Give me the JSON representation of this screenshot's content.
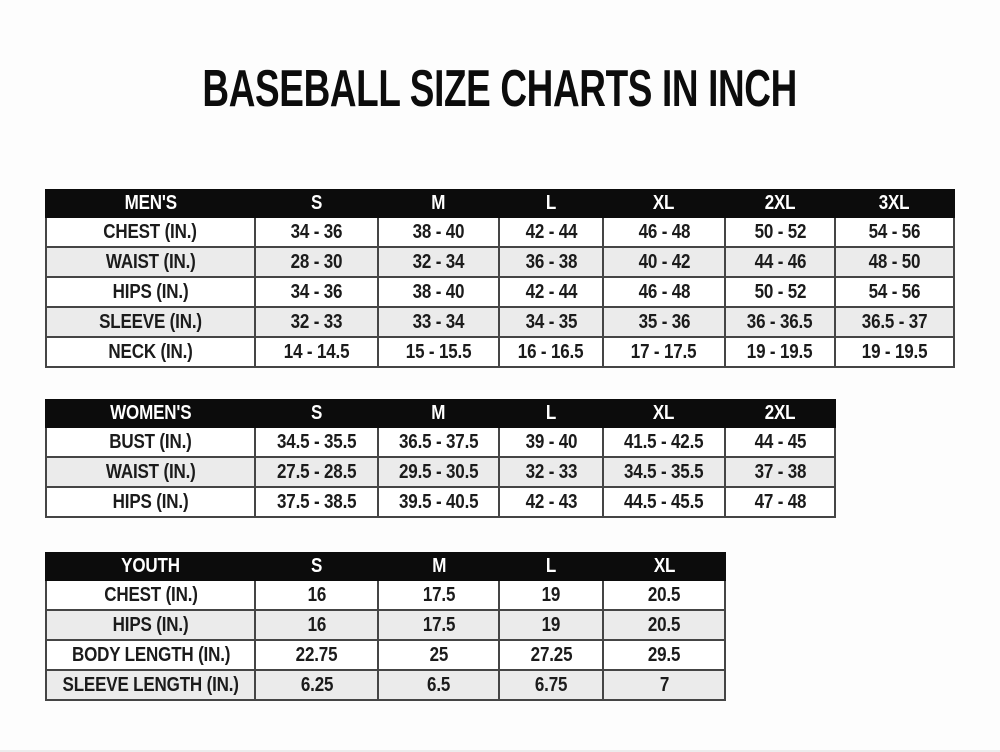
{
  "page": {
    "title": "BASEBALL SIZE CHARTS IN INCH"
  },
  "colors": {
    "background": "#fdfdfd",
    "header_bg": "#0c0c0c",
    "header_text": "#ffffff",
    "row_bg": "#ffffff",
    "row_alt_bg": "#ebebeb",
    "border": "#454545",
    "outer_border": "#111111",
    "text": "#1b1b1b"
  },
  "tables": [
    {
      "id": "mens",
      "header": [
        "MEN'S",
        "S",
        "M",
        "L",
        "XL",
        "2XL",
        "3XL"
      ],
      "rows": [
        {
          "label": "CHEST (IN.)",
          "values": [
            "34 - 36",
            "38 - 40",
            "42 - 44",
            "46 - 48",
            "50 - 52",
            "54 - 56"
          ]
        },
        {
          "label": "WAIST (IN.)",
          "values": [
            "28 - 30",
            "32 - 34",
            "36 - 38",
            "40 - 42",
            "44 - 46",
            "48 - 50"
          ]
        },
        {
          "label": "HIPS (IN.)",
          "values": [
            "34 - 36",
            "38 - 40",
            "42 - 44",
            "46 - 48",
            "50 - 52",
            "54 - 56"
          ]
        },
        {
          "label": "SLEEVE (IN.)",
          "values": [
            "32 - 33",
            "33 - 34",
            "34 - 35",
            "35 - 36",
            "36 - 36.5",
            "36.5 - 37"
          ]
        },
        {
          "label": "NECK (IN.)",
          "values": [
            "14 - 14.5",
            "15 - 15.5",
            "16 - 16.5",
            "17 - 17.5",
            "19 - 19.5",
            "19 - 19.5"
          ]
        }
      ]
    },
    {
      "id": "womens",
      "header": [
        "WOMEN'S",
        "S",
        "M",
        "L",
        "XL",
        "2XL"
      ],
      "rows": [
        {
          "label": "BUST (IN.)",
          "values": [
            "34.5 - 35.5",
            "36.5 - 37.5",
            "39 - 40",
            "41.5 - 42.5",
            "44 - 45"
          ]
        },
        {
          "label": "WAIST (IN.)",
          "values": [
            "27.5 - 28.5",
            "29.5 - 30.5",
            "32 - 33",
            "34.5 - 35.5",
            "37 - 38"
          ]
        },
        {
          "label": "HIPS (IN.)",
          "values": [
            "37.5 - 38.5",
            "39.5 - 40.5",
            "42 - 43",
            "44.5 - 45.5",
            "47 - 48"
          ]
        }
      ]
    },
    {
      "id": "youth",
      "header": [
        "YOUTH",
        "S",
        "M",
        "L",
        "XL"
      ],
      "rows": [
        {
          "label": "CHEST (IN.)",
          "values": [
            "16",
            "17.5",
            "19",
            "20.5"
          ]
        },
        {
          "label": "HIPS (IN.)",
          "values": [
            "16",
            "17.5",
            "19",
            "20.5"
          ]
        },
        {
          "label": "BODY LENGTH (IN.)",
          "values": [
            "22.75",
            "25",
            "27.25",
            "29.5"
          ]
        },
        {
          "label": "SLEEVE LENGTH (IN.)",
          "values": [
            "6.25",
            "6.5",
            "6.75",
            "7"
          ]
        }
      ]
    }
  ]
}
